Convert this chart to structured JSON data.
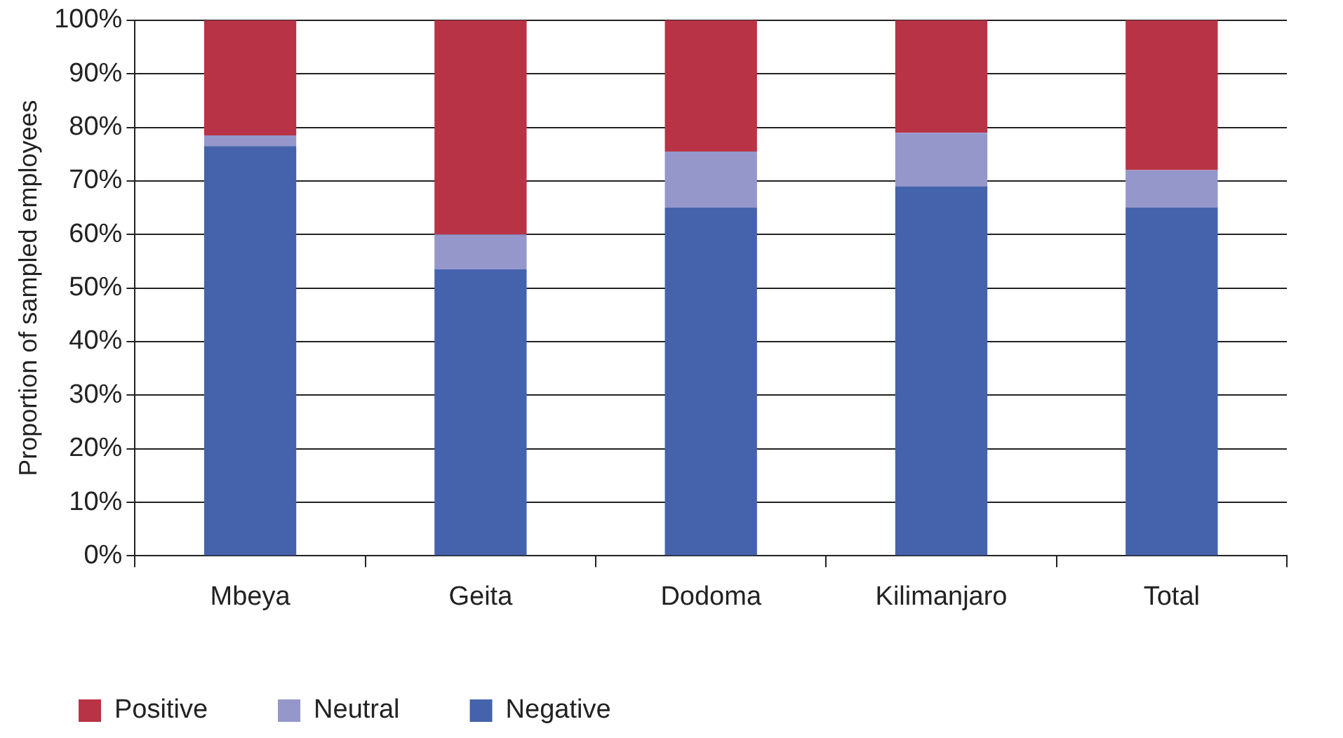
{
  "chart_data": {
    "type": "bar",
    "stacked": true,
    "ylabel": "Proportion of sampled employees",
    "categories": [
      "Mbeya",
      "Geita",
      "Dodoma",
      "Kilimanjaro",
      "Total"
    ],
    "series": [
      {
        "name": "Negative",
        "color": "#4563ac",
        "values": [
          76.5,
          53.5,
          65,
          69,
          65
        ]
      },
      {
        "name": "Neutral",
        "color": "#9597cb",
        "values": [
          2,
          6.5,
          10.5,
          10,
          7
        ]
      },
      {
        "name": "Positive",
        "color": "#b83345",
        "values": [
          21.5,
          40,
          24.5,
          21,
          28
        ]
      }
    ],
    "ylim": [
      0,
      100
    ],
    "yticks": [
      {
        "value": 0,
        "label": "0%"
      },
      {
        "value": 10,
        "label": "10%"
      },
      {
        "value": 20,
        "label": "20%"
      },
      {
        "value": 30,
        "label": "30%"
      },
      {
        "value": 40,
        "label": "40%"
      },
      {
        "value": 50,
        "label": "50%"
      },
      {
        "value": 60,
        "label": "60%"
      },
      {
        "value": 70,
        "label": "70%"
      },
      {
        "value": 80,
        "label": "80%"
      },
      {
        "value": 90,
        "label": "90%"
      },
      {
        "value": 100,
        "label": "100%"
      }
    ],
    "grid": "y",
    "legend": "bottom left"
  }
}
